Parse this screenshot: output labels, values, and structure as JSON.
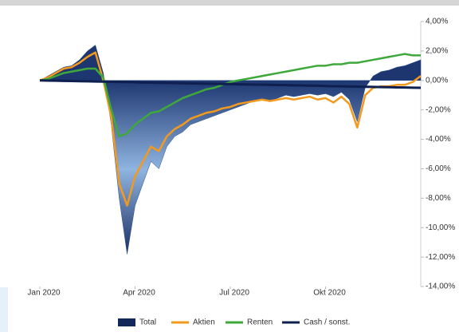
{
  "chart_data": {
    "type": "line",
    "x": [
      0,
      0.25,
      0.5,
      0.75,
      1,
      1.25,
      1.5,
      1.75,
      2,
      2.25,
      2.5,
      2.75,
      3,
      3.25,
      3.5,
      3.75,
      4,
      4.25,
      4.5,
      4.75,
      5,
      5.25,
      5.5,
      5.75,
      6,
      6.25,
      6.5,
      6.75,
      7,
      7.25,
      7.5,
      7.75,
      8,
      8.25,
      8.5,
      8.75,
      9,
      9.25,
      9.5,
      9.75,
      10,
      10.25,
      10.5,
      10.75,
      11,
      11.25,
      11.5,
      11.75,
      12
    ],
    "xlim": [
      0,
      12
    ],
    "xticks": [
      {
        "value": 0,
        "label": "Jan 2020"
      },
      {
        "value": 3,
        "label": "Apr 2020"
      },
      {
        "value": 6,
        "label": "Jul 2020"
      },
      {
        "value": 9,
        "label": "Okt 2020"
      }
    ],
    "ylim": [
      -14,
      4
    ],
    "yticks": [
      {
        "value": 4,
        "label": "4,00%"
      },
      {
        "value": 2,
        "label": "2,00%"
      },
      {
        "value": 0,
        "label": "0,00%"
      },
      {
        "value": -2,
        "label": "-2,00%"
      },
      {
        "value": -4,
        "label": "-4,00%"
      },
      {
        "value": -6,
        "label": "-6,00%"
      },
      {
        "value": -8,
        "label": "-8,00%"
      },
      {
        "value": -10,
        "label": "-10,00%"
      },
      {
        "value": -12,
        "label": "-12,00%"
      },
      {
        "value": -14,
        "label": "-14,00%"
      }
    ],
    "series": [
      {
        "name": "Total",
        "kind": "area",
        "color": "#2a4f8f",
        "values": [
          0,
          0.3,
          0.6,
          0.9,
          1.0,
          1.4,
          2.0,
          2.4,
          0.5,
          -3,
          -8,
          -11.8,
          -8.5,
          -7,
          -5.5,
          -6,
          -4.5,
          -3.8,
          -3.5,
          -3,
          -2.8,
          -2.6,
          -2.4,
          -2.2,
          -2.0,
          -1.8,
          -1.6,
          -1.4,
          -1.3,
          -1.4,
          -1.2,
          -1.0,
          -1.1,
          -1.0,
          -0.9,
          -1.0,
          -0.9,
          -1.1,
          -0.8,
          -1.3,
          -2.8,
          -0.5,
          0.3,
          0.6,
          0.7,
          0.9,
          1.0,
          1.2,
          1.4
        ]
      },
      {
        "name": "Aktien",
        "kind": "line",
        "color": "#f39a1e",
        "values": [
          0,
          0.2,
          0.5,
          0.8,
          0.9,
          1.2,
          1.6,
          1.9,
          0,
          -2.5,
          -7,
          -8.5,
          -6.5,
          -5.5,
          -4.5,
          -4.8,
          -3.8,
          -3.3,
          -3,
          -2.6,
          -2.4,
          -2.2,
          -2.1,
          -1.9,
          -1.8,
          -1.6,
          -1.5,
          -1.4,
          -1.3,
          -1.4,
          -1.3,
          -1.2,
          -1.3,
          -1.2,
          -1.1,
          -1.3,
          -1.2,
          -1.5,
          -1.1,
          -1.6,
          -3.2,
          -1.0,
          -0.5,
          -0.4,
          -0.4,
          -0.3,
          -0.3,
          -0.1,
          0.3
        ]
      },
      {
        "name": "Renten",
        "kind": "line",
        "color": "#3fa83a",
        "values": [
          0,
          0.1,
          0.3,
          0.5,
          0.6,
          0.7,
          0.8,
          0.8,
          0.2,
          -2,
          -3.8,
          -3.6,
          -3,
          -2.6,
          -2.2,
          -2.1,
          -1.8,
          -1.5,
          -1.2,
          -1,
          -0.8,
          -0.6,
          -0.5,
          -0.3,
          -0.1,
          0,
          0.1,
          0.2,
          0.3,
          0.4,
          0.5,
          0.6,
          0.7,
          0.8,
          0.9,
          1.0,
          1.0,
          1.1,
          1.1,
          1.2,
          1.2,
          1.3,
          1.4,
          1.5,
          1.6,
          1.7,
          1.8,
          1.7,
          1.7
        ]
      },
      {
        "name": "Cash / sonst.",
        "kind": "line",
        "color": "#0f1f4f",
        "values": [
          0,
          -0.01,
          -0.02,
          -0.03,
          -0.04,
          -0.05,
          -0.06,
          -0.07,
          -0.08,
          -0.09,
          -0.1,
          -0.11,
          -0.12,
          -0.14,
          -0.15,
          -0.16,
          -0.17,
          -0.18,
          -0.19,
          -0.2,
          -0.21,
          -0.22,
          -0.23,
          -0.24,
          -0.25,
          -0.26,
          -0.27,
          -0.28,
          -0.29,
          -0.3,
          -0.31,
          -0.32,
          -0.33,
          -0.34,
          -0.35,
          -0.36,
          -0.38,
          -0.39,
          -0.4,
          -0.41,
          -0.42,
          -0.43,
          -0.44,
          -0.45,
          -0.46,
          -0.47,
          -0.48,
          -0.49,
          -0.5
        ]
      }
    ]
  }
}
